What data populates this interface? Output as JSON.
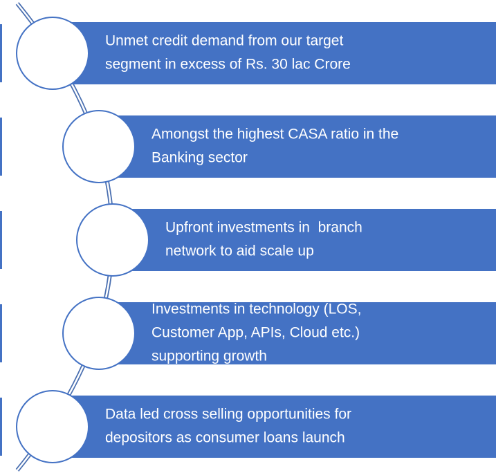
{
  "items": [
    {
      "lines": [
        "Unmet credit demand from our target",
        "segment in excess of Rs. 30 lac Crore"
      ]
    },
    {
      "lines": [
        "Amongst the highest CASA ratio in the",
        "Banking sector"
      ]
    },
    {
      "lines": [
        "Upfront investments in  branch",
        "network to aid scale up"
      ]
    },
    {
      "lines": [
        "Investments in technology (LOS,",
        "Customer App, APIs, Cloud etc.)",
        "supporting growth"
      ]
    },
    {
      "lines": [
        "Data led cross selling opportunities for",
        "depositors as consumer loans launch"
      ]
    }
  ]
}
